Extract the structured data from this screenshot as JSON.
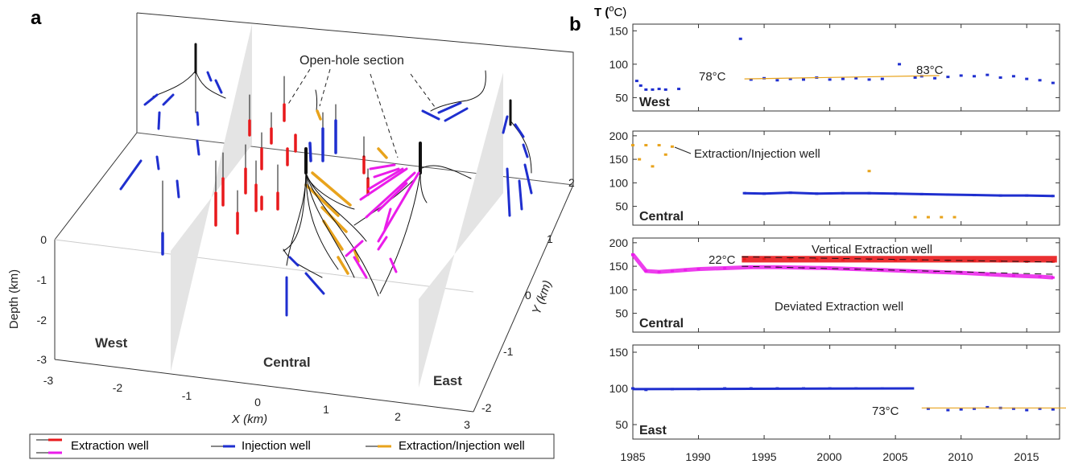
{
  "panel_a": {
    "letter": "a",
    "axes": {
      "x_title": "X (km)",
      "y_title": "Y (km)",
      "z_title": "Depth (km)",
      "x_ticks": [
        "-3",
        "-2",
        "-1",
        "0",
        "1",
        "2",
        "3"
      ],
      "y_ticks": [
        "2",
        "1",
        "0",
        "-1",
        "-2"
      ],
      "z_ticks": [
        "0",
        "-1",
        "-2",
        "-3"
      ]
    },
    "regions": [
      "West",
      "Central",
      "East"
    ],
    "annotation": "Open-hole section",
    "legend": [
      "Extraction well",
      "Injection well",
      "Extraction/Injection well"
    ],
    "colors": {
      "extraction": "#e8191c",
      "extraction_deviated": "#ea1cea",
      "injection": "#1f2fcf",
      "extraction_injection": "#e8a31c",
      "fault_plane": "#e4e4e4",
      "open_hole": "#111111"
    }
  },
  "panel_b": {
    "letter": "b",
    "y_unit": "T (oC)",
    "x_ticks": [
      "1985",
      "1990",
      "1995",
      "2000",
      "2005",
      "2010",
      "2015"
    ],
    "subplots": [
      {
        "region": "West",
        "y_ticks": [
          "150",
          "100",
          "50"
        ],
        "ylim": [
          30,
          160
        ],
        "annotations": [
          "78°C",
          "83°C"
        ]
      },
      {
        "region": "Central",
        "y_ticks": [
          "200",
          "150",
          "100",
          "50"
        ],
        "ylim": [
          10,
          210
        ],
        "annotations": [
          "Extraction/Injection well"
        ]
      },
      {
        "region": "Central",
        "y_ticks": [
          "200",
          "150",
          "100",
          "50"
        ],
        "ylim": [
          10,
          210
        ],
        "annotations": [
          "22°C",
          "Vertical Extraction well",
          "Deviated Extraction well"
        ]
      },
      {
        "region": "East",
        "y_ticks": [
          "150",
          "100",
          "50"
        ],
        "ylim": [
          30,
          160
        ],
        "annotations": [
          "73°C"
        ]
      }
    ]
  },
  "chart_data": [
    {
      "type": "scatter",
      "subplot": "West",
      "xlim": [
        1985,
        2017.5
      ],
      "ylim": [
        30,
        160
      ],
      "series": [
        {
          "color": "#1f2fcf",
          "x": [
            1985.3,
            1985.6,
            1986,
            1986.5,
            1987,
            1987.5,
            1988.5,
            1993.2,
            1994,
            1995,
            1996,
            1997,
            1998,
            1999,
            2000,
            2001,
            2002,
            2003,
            2004,
            2005.3,
            2006.5,
            2007,
            2008,
            2009,
            2010,
            2011,
            2012,
            2013,
            2014,
            2015,
            2016,
            2017
          ],
          "y": [
            75,
            68,
            62,
            62,
            63,
            62,
            63,
            138,
            77,
            79,
            76,
            78,
            77,
            80,
            77,
            78,
            79,
            77,
            78,
            100,
            80,
            82,
            79,
            81,
            83,
            82,
            84,
            80,
            82,
            78,
            76,
            72
          ]
        },
        {
          "color": "#e8a31c",
          "x": [
            1993.5,
            2006.5
          ],
          "y": [
            78,
            83
          ]
        }
      ]
    },
    {
      "type": "scatter",
      "subplot": "Central",
      "xlim": [
        1985,
        2017.5
      ],
      "ylim": [
        10,
        210
      ],
      "series": [
        {
          "color": "#e8a31c",
          "x": [
            1985,
            1986,
            1987,
            1988,
            1985.5,
            1986.5,
            1987.5,
            2003,
            2006.5,
            2007.5,
            2008.5,
            2009.5
          ],
          "y": [
            180,
            180,
            180,
            177,
            150,
            135,
            160,
            125,
            27,
            27,
            27,
            27
          ]
        },
        {
          "color": "#1f2fcf",
          "x": [
            1993.5,
            1995,
            1997,
            1999,
            2001,
            2003,
            2005,
            2007,
            2009,
            2011,
            2013,
            2015,
            2017
          ],
          "y": [
            78,
            77,
            79,
            77,
            78,
            78,
            77,
            76,
            75,
            74,
            73,
            73,
            72
          ]
        }
      ]
    },
    {
      "type": "scatter",
      "subplot": "Central",
      "xlim": [
        1985,
        2017.5
      ],
      "ylim": [
        10,
        210
      ],
      "series": [
        {
          "name": "Vertical Extraction well",
          "color": "#e8191c",
          "x": [
            1993.5,
            1995,
            1997,
            1999,
            2001,
            2003,
            2005,
            2007,
            2009,
            2011,
            2013,
            2015,
            2017
          ],
          "y": [
            165,
            166,
            166,
            165,
            164,
            164,
            163,
            163,
            162,
            162,
            161,
            160,
            160
          ]
        },
        {
          "name": "Deviated Extraction well",
          "color": "#ea1cea",
          "x": [
            1985,
            1986,
            1987,
            1988,
            1989,
            1990,
            1992,
            1994,
            1996,
            1998,
            2000,
            2002,
            2004,
            2006,
            2008,
            2010,
            2012,
            2014,
            2016,
            2017
          ],
          "y": [
            175,
            140,
            138,
            140,
            142,
            144,
            146,
            148,
            148,
            147,
            146,
            144,
            142,
            140,
            138,
            136,
            133,
            130,
            128,
            126
          ]
        }
      ]
    },
    {
      "type": "scatter",
      "subplot": "East",
      "xlim": [
        1985,
        2017.5
      ],
      "ylim": [
        30,
        160
      ],
      "series": [
        {
          "color": "#1f2fcf",
          "x": [
            1985,
            1986,
            1988,
            1990,
            1992,
            1994,
            1996,
            1998,
            2000,
            2002,
            2004,
            2006.3,
            2007.5,
            2009,
            2010,
            2011,
            2012,
            2013,
            2014,
            2015,
            2016,
            2017
          ],
          "y": [
            100,
            98,
            99,
            99,
            100,
            100,
            100,
            100,
            100,
            100,
            100,
            100,
            72,
            70,
            71,
            72,
            74,
            73,
            72,
            70,
            72,
            71
          ]
        },
        {
          "color": "#e8a31c",
          "x": [
            2007,
            2017
          ],
          "y": [
            73,
            73
          ]
        }
      ]
    }
  ]
}
